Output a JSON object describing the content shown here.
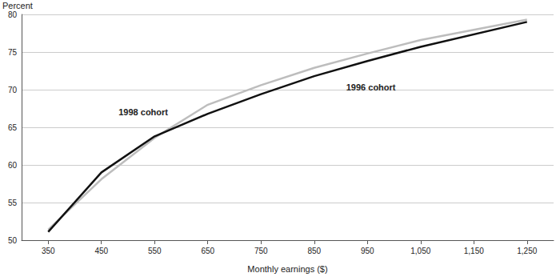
{
  "chart_data": {
    "type": "line",
    "x_label": "Monthly earnings ($)",
    "y_label": "Percent",
    "xlim": [
      300,
      1300
    ],
    "xticks": [
      350,
      450,
      550,
      650,
      750,
      850,
      950,
      {
        "value": 1050,
        "label": "1,050"
      },
      {
        "value": 1150,
        "label": "1,150"
      },
      {
        "value": 1250,
        "label": "1,250"
      }
    ],
    "ylim": [
      50,
      80
    ],
    "yticks": [
      50,
      55,
      60,
      65,
      70,
      75,
      80
    ],
    "grid": true,
    "series": [
      {
        "name": "1998 cohort",
        "color": "#bdbdbd",
        "x": [
          350,
          450,
          550,
          650,
          750,
          850,
          950,
          1050,
          1250
        ],
        "values": [
          51.4,
          58.1,
          63.6,
          68.0,
          70.6,
          72.9,
          74.8,
          76.6,
          79.3
        ]
      },
      {
        "name": "1996 cohort",
        "color": "#111111",
        "x": [
          350,
          450,
          550,
          650,
          750,
          850,
          950,
          1050,
          1250
        ],
        "values": [
          51.1,
          59.0,
          63.8,
          66.8,
          69.4,
          71.8,
          73.8,
          75.7,
          79.0
        ]
      }
    ]
  }
}
